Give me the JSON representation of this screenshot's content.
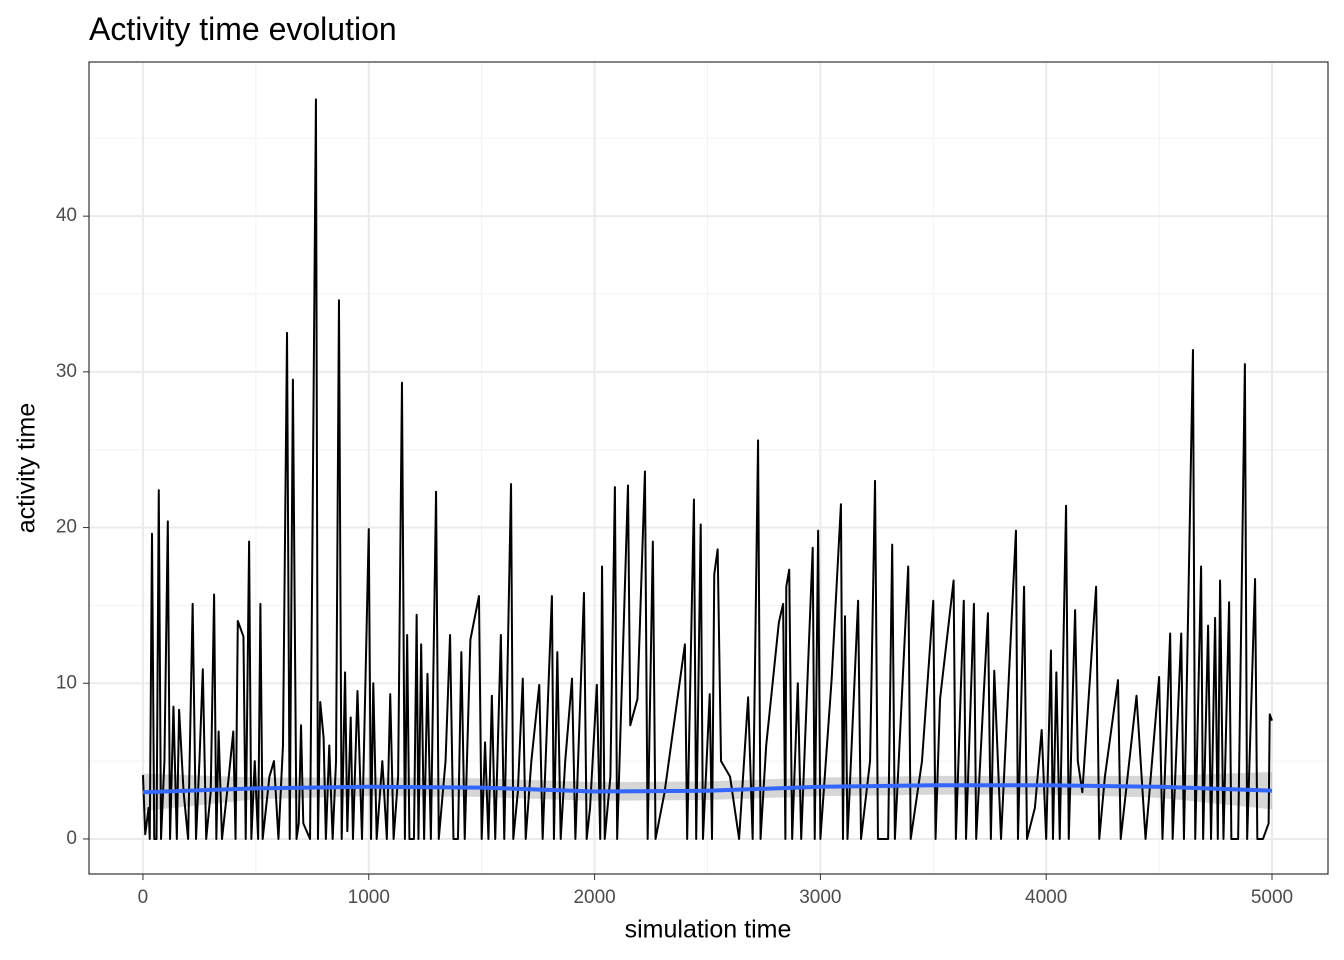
{
  "chart_data": {
    "type": "line",
    "title": "Activity time evolution",
    "x_label": "simulation time",
    "y_label": "activity time",
    "xlim": [
      -239,
      5248
    ],
    "ylim": [
      -2.25,
      49.9
    ],
    "xticks": [
      0,
      1000,
      2000,
      3000,
      4000,
      5000
    ],
    "yticks": [
      0,
      10,
      20,
      30,
      40
    ],
    "grid": true,
    "minor_grid": true,
    "series": [
      {
        "color": "#000000",
        "x": [
          0,
          10,
          25,
          30,
          40,
          50,
          60,
          70,
          80,
          95,
          110,
          120,
          135,
          150,
          160,
          180,
          200,
          220,
          235,
          250,
          265,
          280,
          300,
          315,
          325,
          335,
          350,
          380,
          400,
          410,
          420,
          445,
          455,
          470,
          480,
          495,
          510,
          520,
          530,
          560,
          580,
          600,
          620,
          638,
          650,
          664,
          680,
          690,
          700,
          710,
          740,
          766,
          775,
          785,
          800,
          810,
          825,
          840,
          855,
          868,
          880,
          895,
          905,
          920,
          930,
          950,
          970,
          1000,
          1010,
          1020,
          1035,
          1060,
          1080,
          1095,
          1110,
          1130,
          1147,
          1160,
          1170,
          1180,
          1200,
          1212,
          1220,
          1232,
          1245,
          1260,
          1275,
          1298,
          1310,
          1340,
          1360,
          1375,
          1395,
          1410,
          1425,
          1450,
          1488,
          1500,
          1515,
          1530,
          1545,
          1560,
          1585,
          1600,
          1630,
          1640,
          1660,
          1682,
          1695,
          1720,
          1755,
          1770,
          1811,
          1820,
          1835,
          1850,
          1870,
          1900,
          1915,
          1953,
          1965,
          1980,
          2010,
          2025,
          2033,
          2045,
          2070,
          2090,
          2100,
          2148,
          2158,
          2190,
          2223,
          2235,
          2258,
          2270,
          2310,
          2400,
          2410,
          2440,
          2450,
          2470,
          2480,
          2510,
          2520,
          2530,
          2545,
          2560,
          2600,
          2640,
          2680,
          2700,
          2724,
          2735,
          2760,
          2816,
          2835,
          2845,
          2849,
          2862,
          2875,
          2900,
          2915,
          2966,
          2975,
          2990,
          3000,
          3050,
          3091,
          3100,
          3109,
          3120,
          3167,
          3180,
          3220,
          3242,
          3255,
          3300,
          3318,
          3330,
          3389,
          3400,
          3450,
          3500,
          3510,
          3530,
          3590,
          3600,
          3635,
          3645,
          3680,
          3690,
          3742,
          3755,
          3770,
          3800,
          3866,
          3875,
          3902,
          3915,
          3950,
          3980,
          4000,
          4021,
          4030,
          4045,
          4060,
          4088,
          4100,
          4128,
          4140,
          4160,
          4221,
          4235,
          4260,
          4318,
          4330,
          4400,
          4440,
          4500,
          4515,
          4549,
          4560,
          4598,
          4610,
          4650,
          4660,
          4686,
          4695,
          4717,
          4730,
          4748,
          4760,
          4770,
          4785,
          4810,
          4820,
          4850,
          4880,
          4890,
          4925,
          4935,
          4960,
          4985,
          4990,
          5000
        ],
        "values": [
          4.1,
          0.3,
          2,
          0,
          19.6,
          0,
          0,
          22.4,
          0,
          5,
          20.4,
          0,
          8.5,
          0,
          8.3,
          3,
          0,
          15.1,
          0,
          5,
          10.9,
          0,
          3,
          15.7,
          0,
          6.9,
          0,
          4,
          6.9,
          0,
          14,
          13,
          0,
          19.1,
          0,
          5,
          0,
          15.1,
          0,
          4,
          5,
          0,
          6,
          32.5,
          0,
          29.5,
          0,
          1,
          7.3,
          1,
          0,
          47.5,
          0,
          8.8,
          6.5,
          0,
          6,
          0,
          5,
          34.6,
          0,
          10.7,
          0.5,
          7.8,
          0,
          9.5,
          0,
          19.9,
          0,
          10,
          0,
          5,
          0,
          9.3,
          0,
          4,
          29.3,
          0,
          13.1,
          0,
          0,
          14.4,
          0,
          12.5,
          0,
          10.6,
          0,
          22.3,
          0,
          5,
          13.1,
          0,
          0,
          12,
          0,
          12.8,
          15.6,
          0,
          6.2,
          0,
          9.2,
          0,
          13.1,
          0,
          22.8,
          0,
          3,
          10.3,
          0,
          5,
          9.9,
          0,
          15.6,
          0,
          12,
          0,
          5,
          10.3,
          0,
          15.8,
          0,
          2,
          9.9,
          0,
          17.5,
          0,
          4,
          22.6,
          0,
          22.7,
          7.3,
          9,
          23.6,
          0,
          19.1,
          0,
          3,
          12.5,
          0,
          21.8,
          0,
          20.2,
          0,
          9.3,
          0,
          17,
          18.6,
          5,
          4,
          0,
          9.1,
          0,
          25.6,
          0,
          6,
          13.9,
          15.1,
          0,
          16.2,
          17.3,
          0,
          10,
          0,
          18.7,
          0,
          19.8,
          0,
          10.3,
          21.5,
          0,
          14.3,
          0,
          15.3,
          0,
          5,
          23,
          0,
          0,
          18.9,
          0,
          17.5,
          0,
          5,
          15.3,
          0,
          9,
          16.6,
          0,
          15.3,
          0,
          15.1,
          0,
          14.5,
          0,
          10.8,
          0,
          19.8,
          0,
          16.2,
          0,
          2,
          7,
          0,
          12.1,
          0,
          10.7,
          0,
          21.4,
          0,
          14.7,
          5,
          3,
          16.2,
          0,
          4,
          10.2,
          0,
          9.2,
          0,
          10.4,
          0,
          13.2,
          0,
          13.2,
          0,
          31.4,
          0,
          17.5,
          0,
          13.7,
          0,
          14.2,
          0,
          16.6,
          0,
          15.2,
          0,
          0,
          30.5,
          0,
          16.7,
          0,
          0,
          1,
          8,
          7.6
        ]
      },
      {
        "color": "#3366FF",
        "band_color": "#999999",
        "x": [
          0,
          500,
          1000,
          1500,
          2000,
          2500,
          3000,
          3500,
          4000,
          4500,
          5000
        ],
        "values": [
          3.0,
          3.25,
          3.35,
          3.3,
          3.05,
          3.1,
          3.35,
          3.45,
          3.45,
          3.35,
          3.1
        ],
        "lower": [
          1.8,
          2.55,
          2.75,
          2.7,
          2.45,
          2.5,
          2.75,
          2.85,
          2.85,
          2.65,
          1.9
        ],
        "upper": [
          4.2,
          3.95,
          3.95,
          3.9,
          3.65,
          3.7,
          3.95,
          4.05,
          4.05,
          4.05,
          4.3
        ]
      }
    ]
  }
}
